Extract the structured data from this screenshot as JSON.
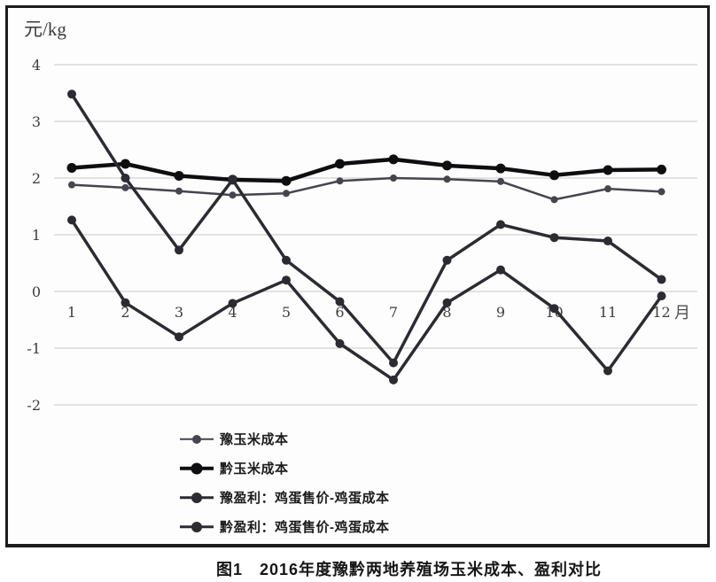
{
  "figure": {
    "unit_label": "元/kg",
    "month_axis_suffix": "月",
    "caption": "图1　2016年度豫黔两地养殖场玉米成本、盈利对比"
  },
  "colors": {
    "grid": "#d9d9d9",
    "frame": "#1d1d1d",
    "tick_text": "#3d3d3d",
    "background": "#fdfdfd"
  },
  "chart_data": {
    "type": "line",
    "title": "图1　2016年度豫黔两地养殖场玉米成本、盈利对比",
    "xlabel": "月",
    "ylabel": "元/kg",
    "x": [
      1,
      2,
      3,
      4,
      5,
      6,
      7,
      8,
      9,
      10,
      11,
      12
    ],
    "xlim": [
      1,
      12
    ],
    "ylim": [
      -2,
      4
    ],
    "yticks": [
      4,
      3,
      2,
      1,
      0,
      -1,
      -2
    ],
    "grid": "horizontal-only",
    "legend_position": "inside-bottom-left",
    "series": [
      {
        "name": "豫玉米成本",
        "values": [
          1.88,
          1.83,
          1.77,
          1.7,
          1.73,
          1.95,
          2.0,
          1.98,
          1.94,
          1.62,
          1.81,
          1.76
        ],
        "color": "#46454f",
        "line_width": 2.5,
        "marker": "circle",
        "marker_radius": 4
      },
      {
        "name": "黔玉米成本",
        "values": [
          2.18,
          2.25,
          2.04,
          1.97,
          1.95,
          2.25,
          2.33,
          2.22,
          2.17,
          2.05,
          2.14,
          2.15
        ],
        "color": "#0e0e11",
        "line_width": 4.5,
        "marker": "circle",
        "marker_radius": 5.5
      },
      {
        "name": "豫盈利：鸡蛋售价-鸡蛋成本",
        "values": [
          1.26,
          -0.2,
          -0.8,
          -0.21,
          0.2,
          -0.92,
          -1.56,
          -0.2,
          0.38,
          -0.3,
          -1.4,
          -0.08
        ],
        "color": "#2c2b32",
        "line_width": 3.5,
        "marker": "circle",
        "marker_radius": 5
      },
      {
        "name": "黔盈利：鸡蛋售价-鸡蛋成本",
        "values": [
          3.48,
          2.0,
          0.73,
          1.97,
          0.55,
          -0.18,
          -1.26,
          0.55,
          1.18,
          0.95,
          0.89,
          0.21
        ],
        "color": "#2c2b32",
        "line_width": 3.5,
        "marker": "circle",
        "marker_radius": 5
      }
    ]
  }
}
